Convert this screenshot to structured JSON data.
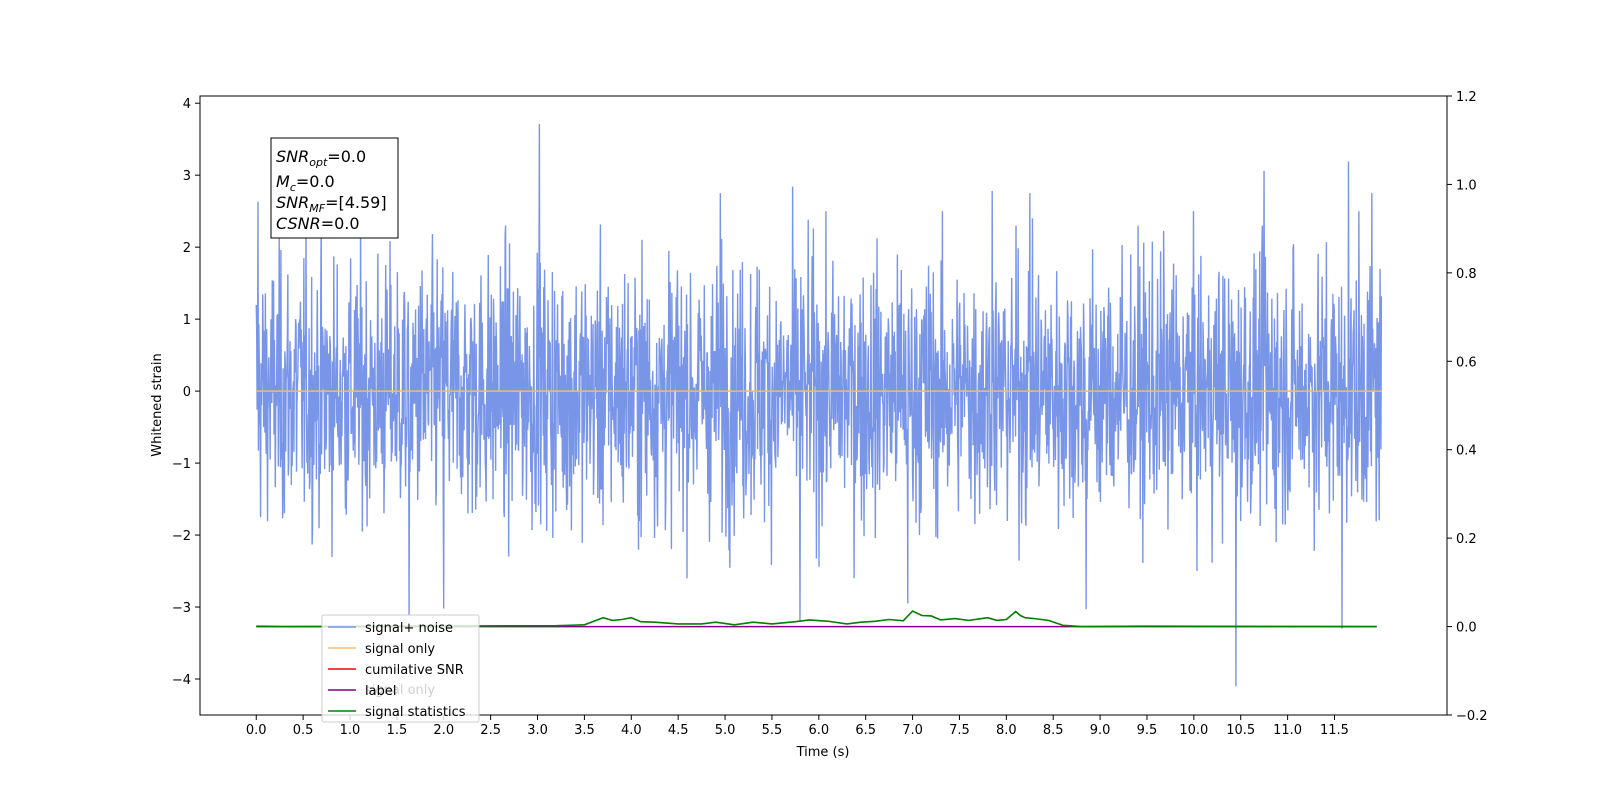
{
  "chart_data": {
    "type": "line",
    "xlabel": "Time (s)",
    "ylabel": "Whitened strain",
    "xlim": [
      -0.6,
      12.7
    ],
    "ylim": [
      -4.5,
      4.1
    ],
    "ylim_right": [
      -0.2,
      1.2
    ],
    "x_ticks": [
      "0.0",
      "0.5",
      "1.0",
      "1.5",
      "2.0",
      "2.5",
      "3.0",
      "3.5",
      "4.0",
      "4.5",
      "5.0",
      "5.5",
      "6.0",
      "6.5",
      "7.0",
      "7.5",
      "8.0",
      "8.5",
      "9.0",
      "9.5",
      "10.0",
      "10.5",
      "11.0",
      "11.5"
    ],
    "y_ticks": [
      "−4",
      "−3",
      "−2",
      "−1",
      "0",
      "1",
      "2",
      "3",
      "4"
    ],
    "y_ticks_right": [
      "−0.2",
      "0.0",
      "0.2",
      "0.4",
      "0.6",
      "0.8",
      "1.0",
      "1.2"
    ],
    "y_ticks_right_values": [
      -0.2,
      0.0,
      0.2,
      0.4,
      0.6,
      0.8,
      1.0,
      1.2
    ],
    "grid": false,
    "legend_position": "lower-left",
    "series": [
      {
        "name": "signal+ noise",
        "color": "#7895e8",
        "axis": "left",
        "x_range": [
          0.0,
          12.0
        ],
        "approx_std": 0.9,
        "spikes": [
          {
            "x": 0.02,
            "y": 2.63
          },
          {
            "x": 3.02,
            "y": 3.71
          },
          {
            "x": 1.63,
            "y": -3.12
          },
          {
            "x": 2.0,
            "y": -3.02
          },
          {
            "x": 5.8,
            "y": -3.2
          },
          {
            "x": 5.72,
            "y": 2.84
          },
          {
            "x": 4.95,
            "y": 2.75
          },
          {
            "x": 8.85,
            "y": -3.03
          },
          {
            "x": 10.45,
            "y": -4.1
          },
          {
            "x": 10.75,
            "y": 3.06
          },
          {
            "x": 11.58,
            "y": -3.3
          },
          {
            "x": 11.65,
            "y": 3.19
          },
          {
            "x": 11.9,
            "y": 2.75
          },
          {
            "x": 7.85,
            "y": 2.78
          },
          {
            "x": 8.25,
            "y": 2.75
          },
          {
            "x": 6.95,
            "y": -2.95
          }
        ]
      },
      {
        "name": "signal only",
        "color": "#f5b870",
        "axis": "left",
        "x": [
          0.0,
          12.0
        ],
        "y": [
          0.0,
          0.0
        ]
      },
      {
        "name": "cumilative SNR",
        "color": "#ff0000",
        "axis": "right",
        "x": [],
        "y": []
      },
      {
        "name": "label",
        "color": "#800080",
        "axis": "right",
        "x": [
          0.0,
          11.95
        ],
        "y": [
          0.0,
          0.0
        ]
      },
      {
        "name": "signal statistics",
        "color": "#008000",
        "axis": "right",
        "x": [
          0.0,
          0.3,
          3.2,
          3.35,
          3.5,
          3.6,
          3.7,
          3.8,
          3.9,
          4.0,
          4.1,
          4.25,
          4.5,
          4.75,
          4.9,
          5.1,
          5.3,
          5.5,
          5.75,
          5.9,
          6.1,
          6.3,
          6.45,
          6.6,
          6.75,
          6.9,
          7.0,
          7.1,
          7.2,
          7.3,
          7.45,
          7.6,
          7.7,
          7.8,
          7.9,
          8.0,
          8.1,
          8.15,
          8.2,
          8.3,
          8.45,
          8.6,
          8.8,
          9.5,
          11.95
        ],
        "y": [
          0.001,
          0.0,
          0.002,
          0.003,
          0.004,
          0.012,
          0.02,
          0.014,
          0.016,
          0.02,
          0.011,
          0.01,
          0.006,
          0.006,
          0.01,
          0.004,
          0.01,
          0.006,
          0.011,
          0.015,
          0.012,
          0.006,
          0.01,
          0.012,
          0.016,
          0.013,
          0.035,
          0.025,
          0.024,
          0.015,
          0.018,
          0.014,
          0.017,
          0.02,
          0.014,
          0.016,
          0.034,
          0.025,
          0.02,
          0.018,
          0.014,
          0.003,
          0.0,
          0.001,
          0.0
        ]
      }
    ],
    "annotation_box": {
      "lines": [
        {
          "sym": "SNR",
          "sub": "opt",
          "val": "=0.0"
        },
        {
          "sym": "M",
          "sub": "c",
          "val": "=0.0"
        },
        {
          "sym": "SNR",
          "sub": "MF",
          "val": "=[4.59]"
        },
        {
          "sym": "CSNR",
          "sub": "",
          "val": "=0.0"
        }
      ]
    },
    "legend_ghost_text": "signal only"
  }
}
